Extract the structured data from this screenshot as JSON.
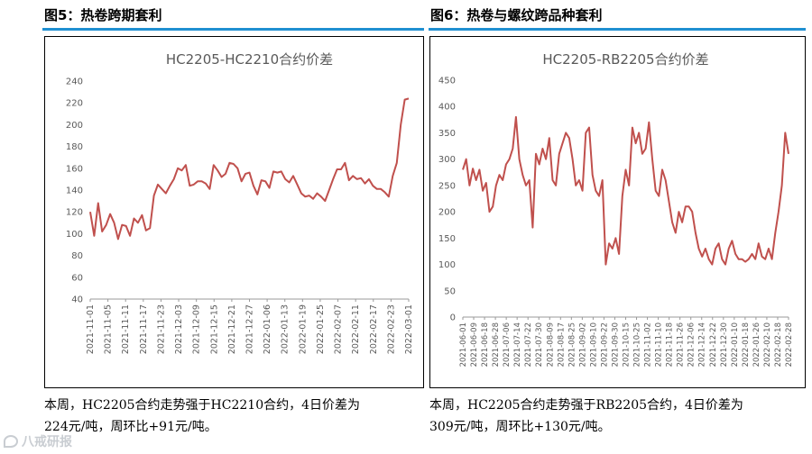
{
  "figures": [
    {
      "title": "图5：热卷跨期套利",
      "caption_lines": [
        "本周，HC2205合约走势强于HC2210合约，4日价差为",
        "224元/吨，周环比+91元/吨。"
      ]
    },
    {
      "title": "图6：热卷与螺纹跨品种套利",
      "caption_lines": [
        "本周，HC2205合约走势强于RB2205合约，4日价差为",
        "309元/吨，周环比+130元/吨。"
      ]
    }
  ],
  "watermark": "八戒研报",
  "colors": {
    "line": "#c0504d",
    "rule": "#1f8fd1",
    "axis": "#999999"
  },
  "chart_data": [
    {
      "type": "line",
      "title": "HC2205-HC2210合约价差",
      "xlabel": "",
      "ylabel": "",
      "ylim": [
        40,
        240
      ],
      "yticks": [
        40,
        60,
        80,
        100,
        120,
        140,
        160,
        180,
        200,
        220,
        240
      ],
      "grid": false,
      "x_labels": [
        "2021-11-01",
        "2021-11-05",
        "2021-11-11",
        "2021-11-17",
        "2021-11-23",
        "2021-12-03",
        "2021-12-09",
        "2021-12-15",
        "2021-12-21",
        "2021-12-27",
        "2022-01-06",
        "2022-01-13",
        "2022-01-19",
        "2022-01-25",
        "2022-02-07",
        "2022-02-11",
        "2022-02-17",
        "2022-02-23",
        "2022-03-01"
      ],
      "series": [
        {
          "values": [
            120,
            98,
            128,
            102,
            108,
            118,
            110,
            95,
            108,
            107,
            98,
            114,
            110,
            117,
            103,
            105,
            135,
            145,
            141,
            137,
            144,
            150,
            160,
            158,
            163,
            144,
            145,
            148,
            148,
            146,
            141,
            163,
            158,
            152,
            155,
            165,
            164,
            160,
            148,
            155,
            156,
            144,
            136,
            149,
            148,
            142,
            157,
            156,
            157,
            150,
            147,
            153,
            145,
            137,
            134,
            135,
            132,
            137,
            134,
            130,
            140,
            150,
            159,
            159,
            165,
            149,
            153,
            150,
            151,
            146,
            150,
            144,
            141,
            141,
            138,
            134,
            153,
            165,
            200,
            223,
            224
          ]
        }
      ]
    },
    {
      "type": "line",
      "title": "HC2205-RB2205合约价差",
      "xlabel": "",
      "ylabel": "",
      "ylim": [
        0,
        450
      ],
      "yticks": [
        0,
        50,
        100,
        150,
        200,
        250,
        300,
        350,
        400,
        450
      ],
      "grid": false,
      "x_labels": [
        "2021-06-01",
        "2021-06-09",
        "2021-06-18",
        "2021-06-28",
        "2021-07-06",
        "2021-07-14",
        "2021-07-22",
        "2021-07-30",
        "2021-08-09",
        "2021-08-17",
        "2021-08-25",
        "2021-09-02",
        "2021-09-10",
        "2021-09-22",
        "2021-09-30",
        "2021-10-15",
        "2021-10-25",
        "2021-11-02",
        "2021-11-10",
        "2021-11-18",
        "2021-11-26",
        "2021-12-06",
        "2021-12-14",
        "2021-12-22",
        "2021-12-30",
        "2022-01-10",
        "2022-01-18",
        "2022-01-26",
        "2022-02-10",
        "2022-02-18",
        "2022-02-28"
      ],
      "series": [
        {
          "values": [
            280,
            300,
            250,
            282,
            260,
            280,
            240,
            255,
            200,
            210,
            250,
            270,
            260,
            290,
            300,
            320,
            380,
            300,
            270,
            250,
            260,
            170,
            310,
            290,
            320,
            300,
            340,
            260,
            250,
            310,
            330,
            350,
            340,
            300,
            250,
            260,
            240,
            350,
            360,
            270,
            240,
            230,
            260,
            100,
            140,
            130,
            150,
            120,
            230,
            280,
            250,
            360,
            330,
            350,
            310,
            320,
            370,
            300,
            240,
            230,
            280,
            260,
            220,
            180,
            160,
            200,
            180,
            210,
            210,
            200,
            160,
            130,
            115,
            130,
            110,
            100,
            130,
            140,
            110,
            100,
            130,
            145,
            120,
            110,
            110,
            105,
            110,
            120,
            110,
            140,
            115,
            110,
            130,
            110,
            160,
            200,
            250,
            350,
            310
          ]
        }
      ]
    }
  ]
}
